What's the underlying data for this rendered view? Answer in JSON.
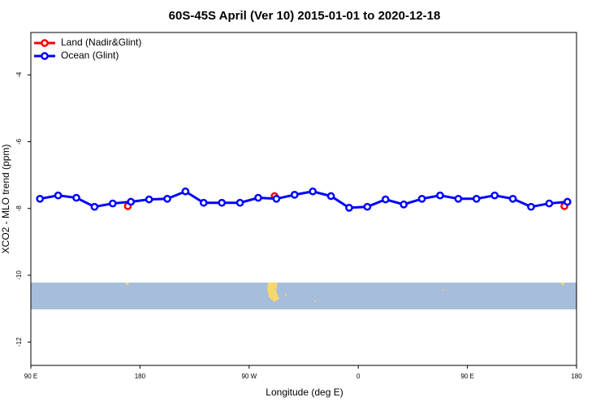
{
  "chart_data": {
    "type": "line",
    "title": "60S-45S April (Ver 10)   2015-01-01 to 2020-12-18",
    "x_label": "Longitude (deg E)",
    "y_label": "XCO2 - MLO trend (ppm)",
    "xlim": [
      90,
      540
    ],
    "ylim": [
      -12.7,
      -2.73
    ],
    "xticks": [
      {
        "value": 90,
        "label": "90 E"
      },
      {
        "value": 180,
        "label": "180"
      },
      {
        "value": 270,
        "label": "90 W"
      },
      {
        "value": 360,
        "label": "0"
      },
      {
        "value": 450,
        "label": "90 E"
      },
      {
        "value": 540,
        "label": "180"
      }
    ],
    "yticks": [
      -12,
      -10,
      -8,
      -6,
      -4
    ],
    "legend": "top-left",
    "series": [
      {
        "name": "Land (Nadir&Glint)",
        "color": "#ff0000",
        "x": [
          170,
          291,
          530
        ],
        "values": [
          -7.93,
          -7.63,
          -7.93
        ]
      },
      {
        "name": "Ocean (Glint)",
        "color": "#0000ff",
        "x": [
          97.5,
          112.5,
          127.5,
          142.5,
          157.5,
          172.5,
          187.5,
          202.5,
          217.5,
          232.5,
          247.5,
          262.5,
          277.5,
          292.5,
          307.5,
          322.5,
          337.5,
          352.5,
          367.5,
          382.5,
          397.5,
          412.5,
          427.5,
          442.5,
          457.5,
          472.5,
          487.5,
          502.5,
          517.5,
          532.5
        ],
        "values": [
          -7.71,
          -7.61,
          -7.68,
          -7.95,
          -7.85,
          -7.8,
          -7.73,
          -7.71,
          -7.49,
          -7.83,
          -7.83,
          -7.83,
          -7.68,
          -7.71,
          -7.59,
          -7.49,
          -7.63,
          -7.98,
          -7.95,
          -7.73,
          -7.88,
          -7.71,
          -7.61,
          -7.71,
          -7.71,
          -7.61,
          -7.71,
          -7.95,
          -7.85,
          -7.8
        ]
      }
    ]
  }
}
